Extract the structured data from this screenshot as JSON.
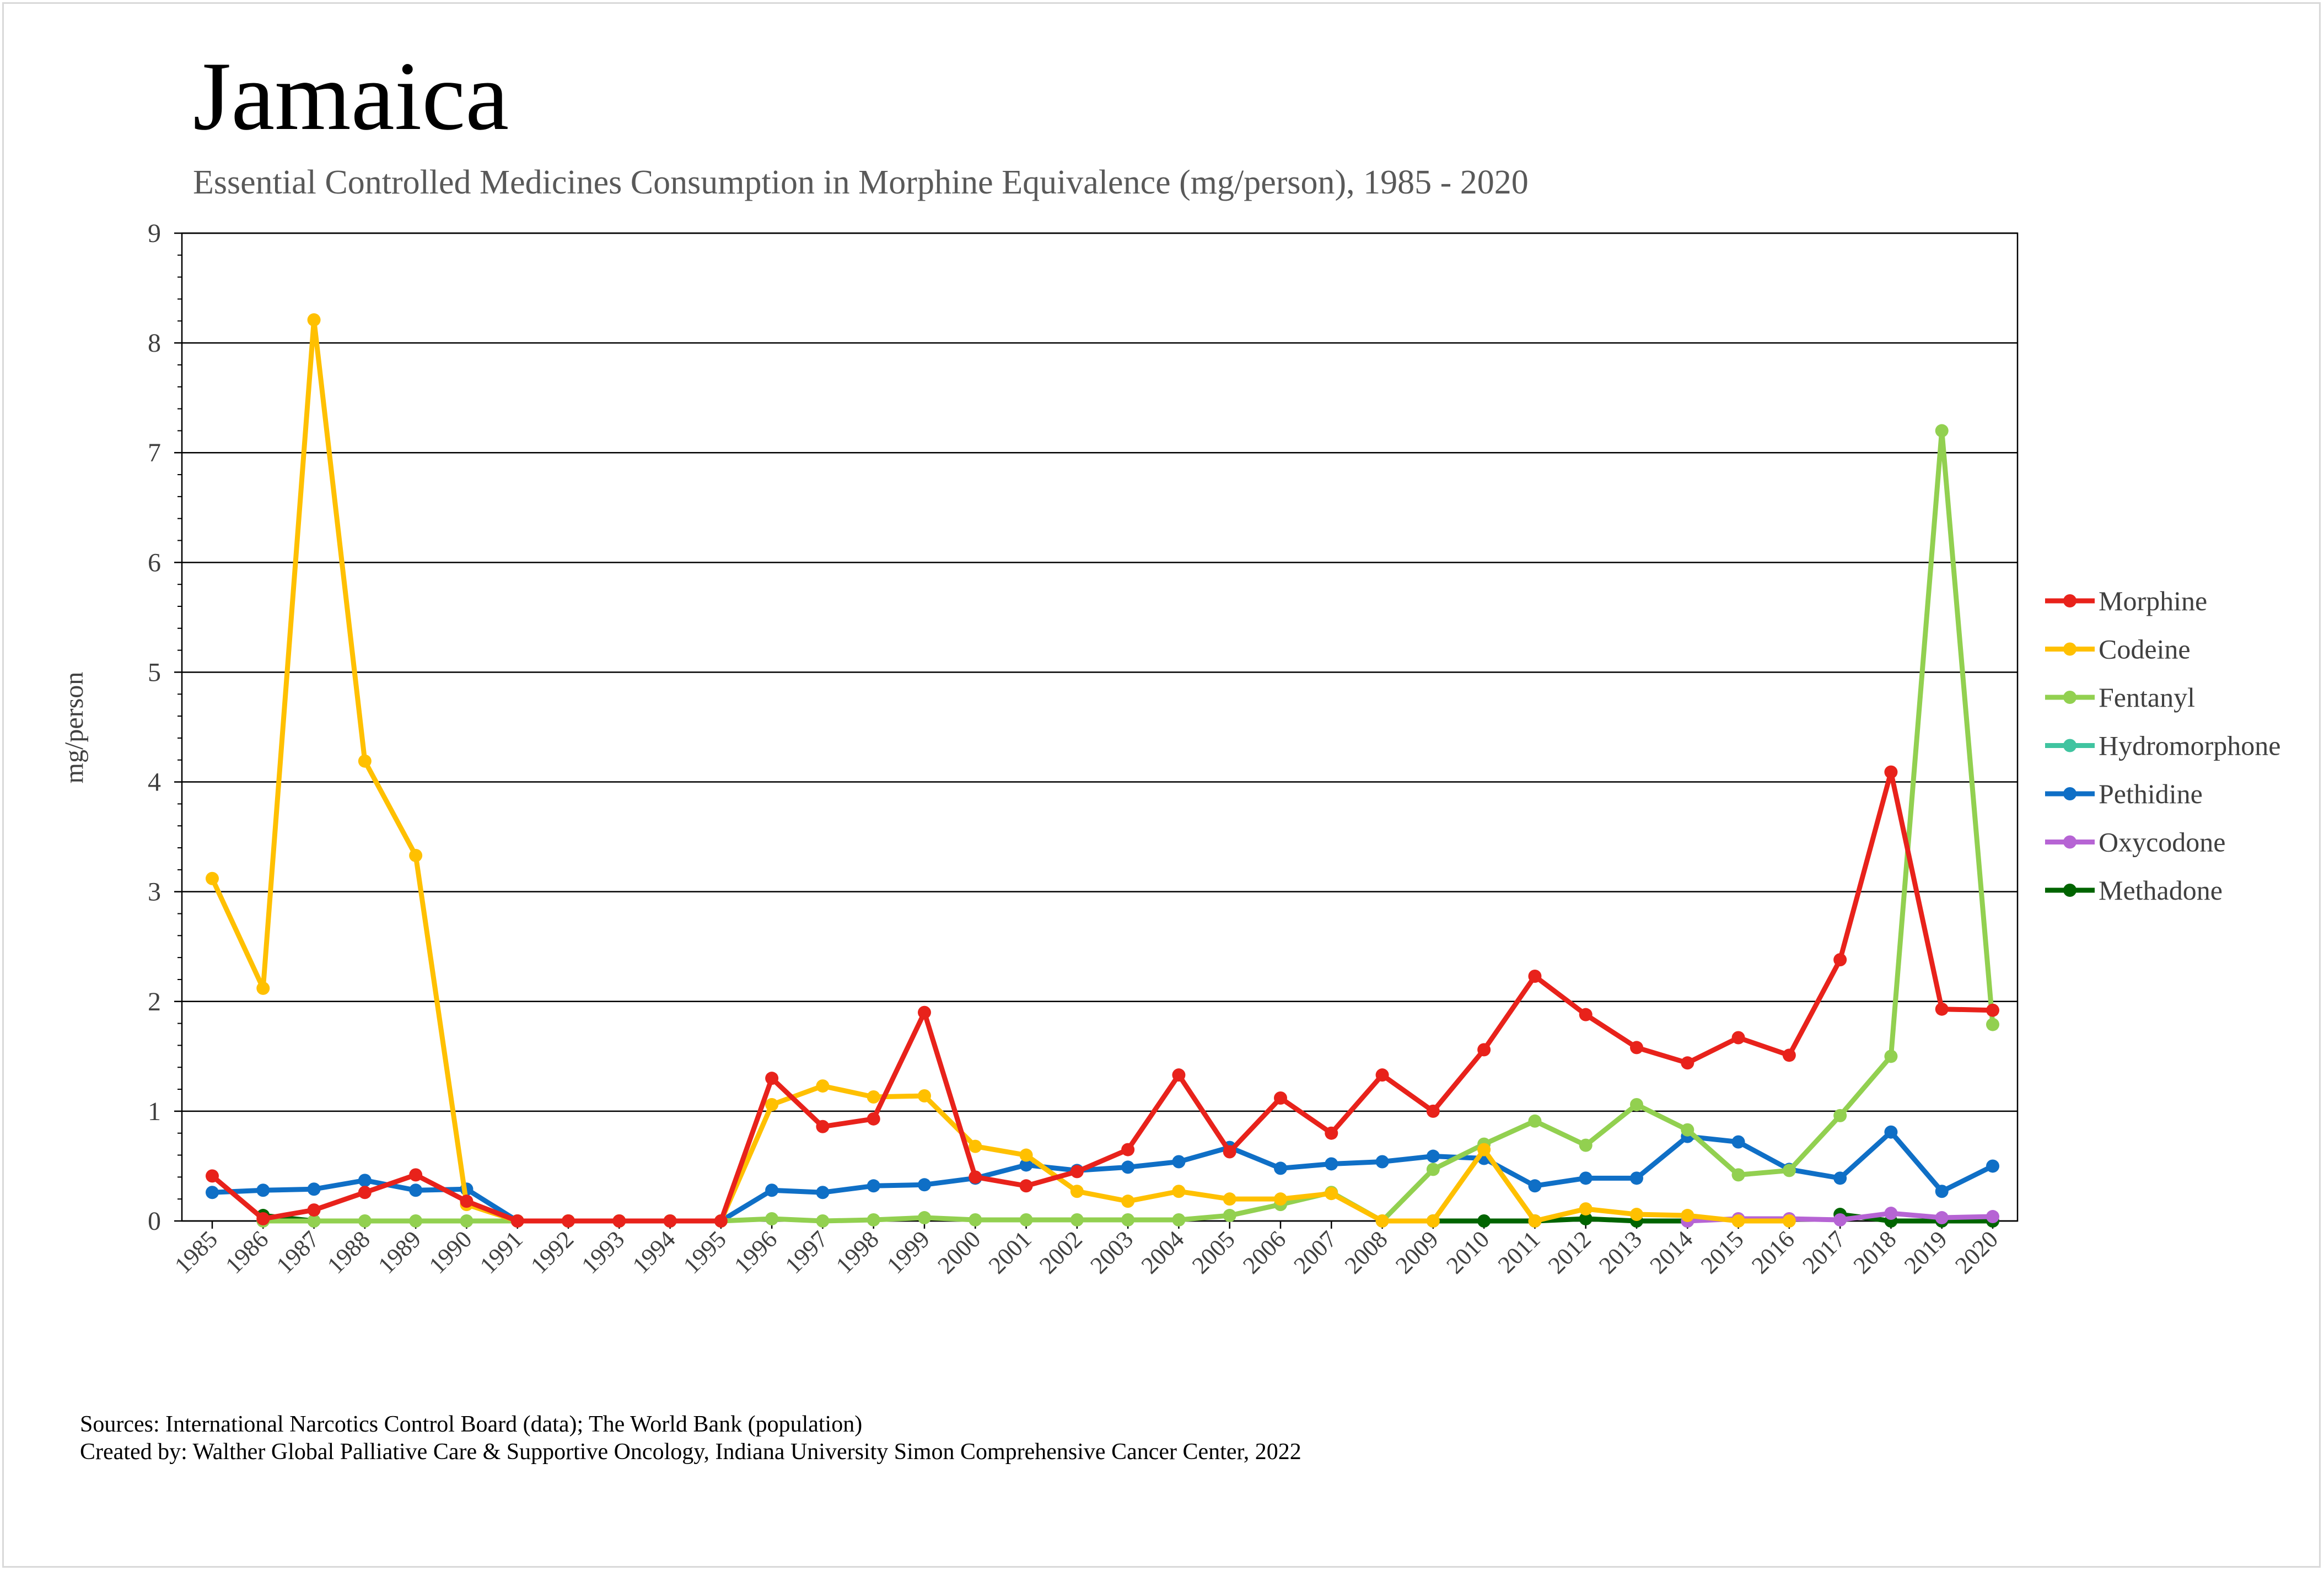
{
  "title": "Jamaica",
  "subtitle": "Essential Controlled Medicines Consumption in Morphine Equivalence (mg/person), 1985 - 2020",
  "footer": {
    "sources": "Sources: International Narcotics Control Board (data); The World Bank (population)",
    "created_by": "Created by: Walther Global Palliative Care & Supportive Oncology, Indiana University Simon Comprehensive Cancer Center, 2022"
  },
  "chart_data": {
    "type": "line",
    "title": "Jamaica",
    "ylabel": "mg/person",
    "xlabel": "",
    "ylim": [
      0,
      9
    ],
    "yticks": [
      0,
      1,
      2,
      3,
      4,
      5,
      6,
      7,
      8,
      9
    ],
    "grid": true,
    "legend_position": "right",
    "x": [
      "1985",
      "1986",
      "1987",
      "1988",
      "1989",
      "1990",
      "1991",
      "1992",
      "1993",
      "1994",
      "1995",
      "1996",
      "1997",
      "1998",
      "1999",
      "2000",
      "2001",
      "2002",
      "2003",
      "2004",
      "2005",
      "2006",
      "2007",
      "2008",
      "2009",
      "2010",
      "2011",
      "2012",
      "2013",
      "2014",
      "2015",
      "2016",
      "2017",
      "2018",
      "2019",
      "2020"
    ],
    "series": [
      {
        "name": "Morphine",
        "color": "#e8221b",
        "values": [
          0.41,
          0.02,
          0.1,
          0.26,
          0.42,
          0.18,
          0,
          0,
          0,
          0,
          0,
          1.3,
          0.86,
          0.93,
          1.9,
          0.4,
          0.32,
          0.45,
          0.65,
          1.33,
          0.63,
          1.12,
          0.8,
          1.33,
          1.0,
          1.56,
          2.23,
          1.88,
          1.58,
          1.44,
          1.67,
          1.51,
          2.38,
          4.09,
          1.93,
          1.92
        ]
      },
      {
        "name": "Codeine",
        "color": "#ffc000",
        "values": [
          3.12,
          2.12,
          8.21,
          4.19,
          3.33,
          0.15,
          0,
          0,
          0,
          0,
          0,
          1.06,
          1.23,
          1.13,
          1.14,
          0.68,
          0.6,
          0.27,
          0.18,
          0.27,
          0.2,
          0.2,
          0.25,
          0,
          0,
          0.65,
          0,
          0.11,
          0.06,
          0.05,
          0,
          0,
          null,
          null,
          null,
          null
        ]
      },
      {
        "name": "Fentanyl",
        "color": "#92d050",
        "values": [
          null,
          0,
          0,
          0,
          0,
          0,
          0,
          0,
          0,
          0,
          0,
          0.02,
          0,
          0.01,
          0.03,
          0.01,
          0.01,
          0.01,
          0.01,
          0.01,
          0.05,
          0.15,
          0.26,
          0,
          0.47,
          0.7,
          0.91,
          0.69,
          1.06,
          0.83,
          0.42,
          0.46,
          0.96,
          1.5,
          7.2,
          1.79
        ]
      },
      {
        "name": "Hydromorphone",
        "color": "#40c4a0",
        "values": [
          null,
          null,
          null,
          null,
          null,
          null,
          null,
          null,
          null,
          null,
          null,
          null,
          null,
          null,
          null,
          null,
          null,
          null,
          null,
          null,
          null,
          null,
          null,
          null,
          null,
          null,
          null,
          null,
          null,
          null,
          null,
          null,
          null,
          null,
          null,
          null
        ]
      },
      {
        "name": "Pethidine",
        "color": "#0f6fc6",
        "values": [
          0.26,
          0.28,
          0.29,
          0.37,
          0.28,
          0.29,
          0,
          0,
          0,
          0,
          0,
          0.28,
          0.26,
          0.32,
          0.33,
          0.39,
          0.51,
          0.46,
          0.49,
          0.54,
          0.67,
          0.48,
          0.52,
          0.54,
          0.59,
          0.57,
          0.32,
          0.39,
          0.39,
          0.77,
          0.72,
          0.47,
          0.39,
          0.81,
          0.27,
          0.5
        ]
      },
      {
        "name": "Oxycodone",
        "color": "#b664d4",
        "values": [
          null,
          null,
          null,
          null,
          null,
          null,
          null,
          null,
          null,
          null,
          null,
          null,
          null,
          null,
          null,
          null,
          null,
          null,
          null,
          null,
          null,
          null,
          null,
          null,
          null,
          null,
          null,
          null,
          null,
          0,
          0.02,
          0.02,
          0.01,
          0.07,
          0.03,
          0.04
        ]
      },
      {
        "name": "Methadone",
        "color": "#006400",
        "values": [
          null,
          0.05,
          0,
          null,
          null,
          null,
          null,
          null,
          null,
          null,
          null,
          null,
          null,
          null,
          null,
          null,
          null,
          null,
          null,
          null,
          null,
          null,
          null,
          null,
          0,
          0,
          0,
          0.02,
          0,
          0,
          null,
          null,
          0.06,
          0,
          0,
          0
        ]
      }
    ]
  }
}
